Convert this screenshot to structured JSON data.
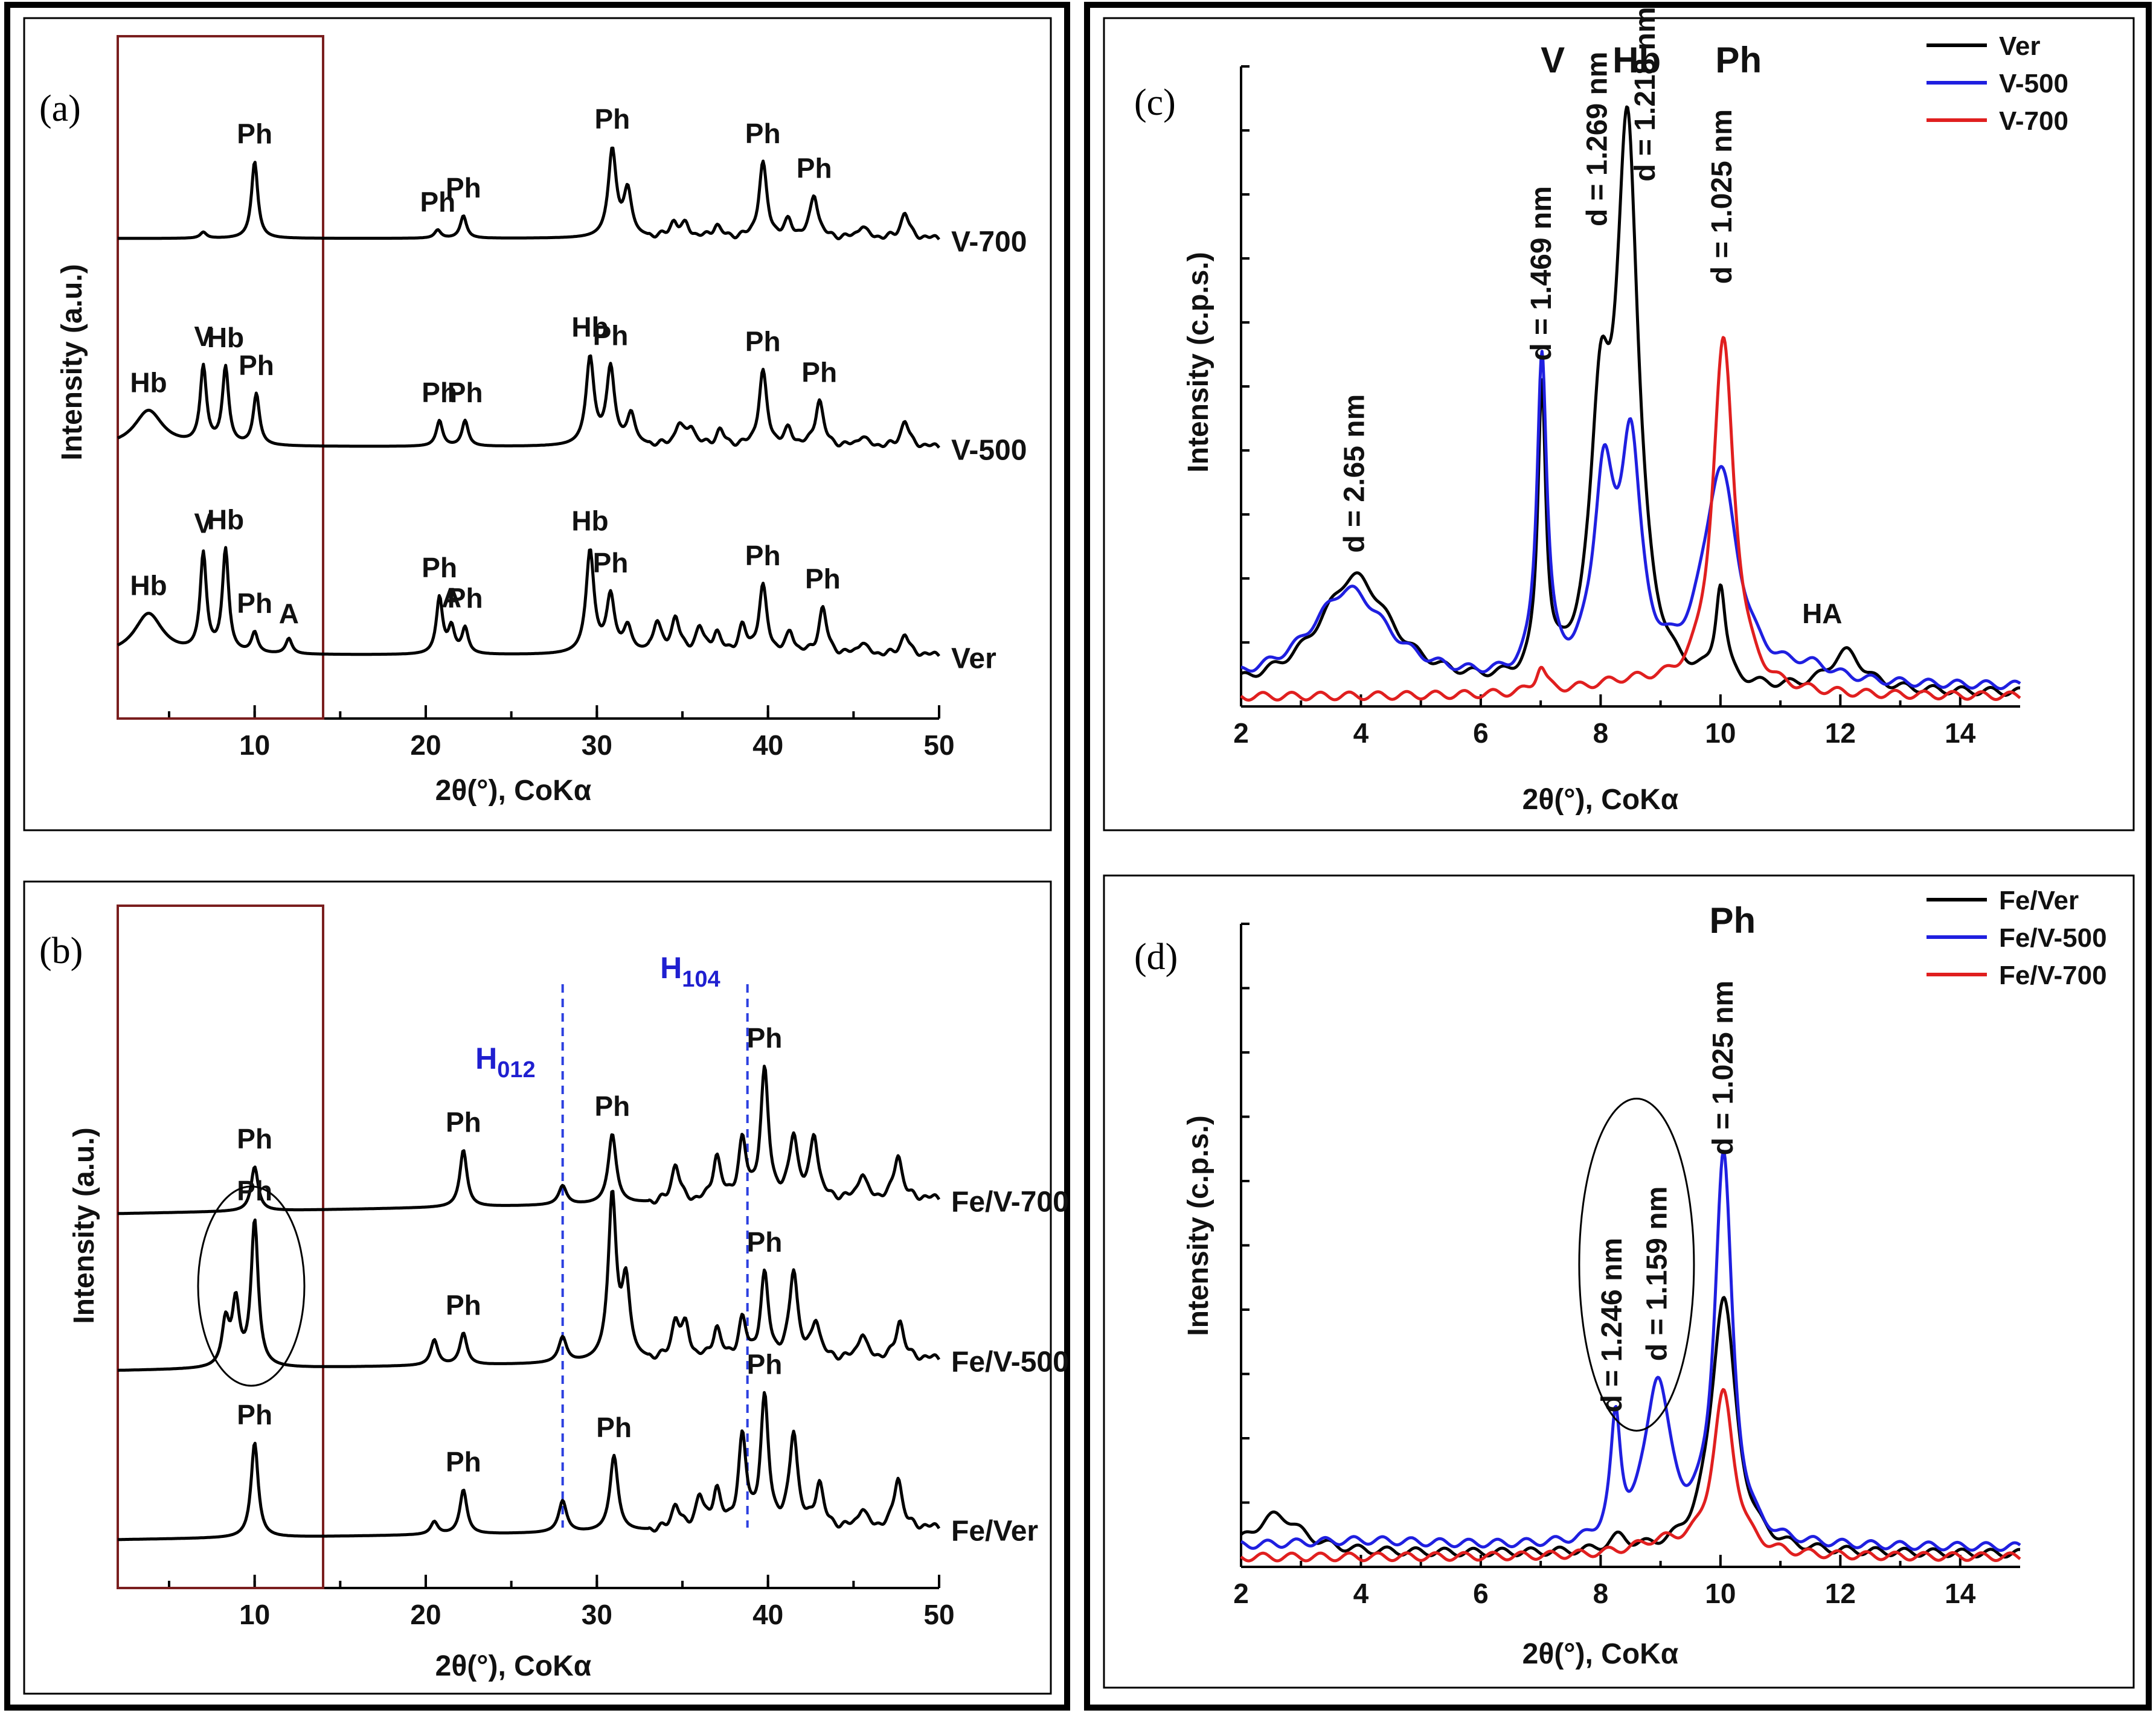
{
  "chart_data": [
    {
      "panel": "(a)",
      "type": "line",
      "xlabel": "2θ(°), CoKα",
      "ylabel": "Intensity (a.u.)",
      "xlim": [
        2,
        50
      ],
      "xticks": [
        10,
        20,
        30,
        40,
        50
      ],
      "stacked": true,
      "series": [
        {
          "name": "V-700",
          "color": "#000000",
          "peaks": [
            [
              7,
              0.06
            ],
            [
              10,
              0.75
            ],
            [
              20.7,
              0.08
            ],
            [
              22.2,
              0.22
            ],
            [
              30.9,
              0.85
            ],
            [
              31.8,
              0.45
            ],
            [
              34.5,
              0.15
            ],
            [
              35.2,
              0.12
            ],
            [
              37,
              0.12
            ],
            [
              39.7,
              0.72
            ],
            [
              41.2,
              0.15
            ],
            [
              42.7,
              0.42
            ],
            [
              45.5,
              0.12
            ],
            [
              48,
              0.25
            ]
          ],
          "peak_labels": [
            [
              "Ph",
              10
            ],
            [
              "Ph",
              20.7
            ],
            [
              "Ph",
              22.2
            ],
            [
              "Ph",
              30.9
            ],
            [
              "Ph",
              39.7
            ],
            [
              "Ph",
              42.7
            ]
          ]
        },
        {
          "name": "V-500",
          "color": "#000000",
          "peaks": [
            [
              3.8,
              0.35
            ],
            [
              7,
              0.75
            ],
            [
              8.3,
              0.75
            ],
            [
              10.1,
              0.5
            ],
            [
              20.8,
              0.25
            ],
            [
              22.3,
              0.25
            ],
            [
              29.6,
              0.85
            ],
            [
              30.8,
              0.75
            ],
            [
              32,
              0.3
            ],
            [
              34.8,
              0.2
            ],
            [
              35.5,
              0.18
            ],
            [
              37.2,
              0.15
            ],
            [
              39.7,
              0.72
            ],
            [
              41.2,
              0.15
            ],
            [
              43,
              0.45
            ],
            [
              45.5,
              0.1
            ],
            [
              48,
              0.25
            ]
          ],
          "peak_labels": [
            [
              "Hb",
              3.8
            ],
            [
              "V",
              7
            ],
            [
              "Hb",
              8.3
            ],
            [
              "Ph",
              10.1
            ],
            [
              "Ph",
              20.8
            ],
            [
              "Ph",
              22.3
            ],
            [
              "Hb",
              29.6
            ],
            [
              "Ph",
              30.8
            ],
            [
              "Ph",
              39.7
            ],
            [
              "Ph",
              43
            ]
          ]
        },
        {
          "name": "Ver",
          "color": "#000000",
          "peaks": [
            [
              3.8,
              0.4
            ],
            [
              7,
              0.95
            ],
            [
              8.3,
              1.0
            ],
            [
              10,
              0.2
            ],
            [
              12,
              0.15
            ],
            [
              20.8,
              0.55
            ],
            [
              21.5,
              0.25
            ],
            [
              22.3,
              0.25
            ],
            [
              29.6,
              1.0
            ],
            [
              30.8,
              0.55
            ],
            [
              31.8,
              0.25
            ],
            [
              33.5,
              0.3
            ],
            [
              34.6,
              0.35
            ],
            [
              36,
              0.25
            ],
            [
              37,
              0.2
            ],
            [
              38.5,
              0.25
            ],
            [
              39.7,
              0.65
            ],
            [
              41.3,
              0.2
            ],
            [
              43.2,
              0.45
            ],
            [
              45.5,
              0.12
            ],
            [
              48,
              0.2
            ]
          ],
          "peak_labels": [
            [
              "Hb",
              3.8
            ],
            [
              "V",
              7
            ],
            [
              "Hb",
              8.3
            ],
            [
              "Ph",
              10
            ],
            [
              "A",
              12
            ],
            [
              "Ph",
              20.8
            ],
            [
              "A",
              21.5
            ],
            [
              "Ph",
              22.3
            ],
            [
              "Hb",
              29.6
            ],
            [
              "Ph",
              30.8
            ],
            [
              "Ph",
              39.7
            ],
            [
              "Ph",
              43.2
            ]
          ]
        }
      ],
      "highlight_box_x": [
        2,
        14
      ]
    },
    {
      "panel": "(b)",
      "type": "line",
      "xlabel": "2θ(°), CoKα",
      "ylabel": "Intensity (a.u.)",
      "xlim": [
        2,
        50
      ],
      "xticks": [
        10,
        20,
        30,
        40,
        50
      ],
      "stacked": true,
      "reference_lines": [
        {
          "label": "H012",
          "x": 28
        },
        {
          "label": "H104",
          "x": 38.8
        }
      ],
      "series": [
        {
          "name": "Fe/V-700",
          "color": "#000000",
          "peaks": [
            [
              10,
              0.35
            ],
            [
              22.2,
              0.45
            ],
            [
              28,
              0.15
            ],
            [
              30.9,
              0.55
            ],
            [
              34.6,
              0.3
            ],
            [
              37,
              0.35
            ],
            [
              38.5,
              0.45
            ],
            [
              39.8,
              1.0
            ],
            [
              41.5,
              0.5
            ],
            [
              42.7,
              0.5
            ],
            [
              45.5,
              0.2
            ],
            [
              47.6,
              0.35
            ]
          ],
          "peak_labels": [
            [
              "Ph",
              10
            ],
            [
              "Ph",
              22.2
            ],
            [
              "Ph",
              30.9
            ],
            [
              "Ph",
              39.8
            ]
          ]
        },
        {
          "name": "Fe/V-500",
          "color": "#000000",
          "peaks": [
            [
              8.3,
              0.35
            ],
            [
              8.9,
              0.5
            ],
            [
              10,
              1.15
            ],
            [
              20.5,
              0.2
            ],
            [
              22.2,
              0.25
            ],
            [
              28,
              0.2
            ],
            [
              30.9,
              1.3
            ],
            [
              31.7,
              0.6
            ],
            [
              34.6,
              0.3
            ],
            [
              35.2,
              0.25
            ],
            [
              37,
              0.25
            ],
            [
              38.5,
              0.3
            ],
            [
              39.8,
              0.65
            ],
            [
              41.5,
              0.7
            ],
            [
              42.8,
              0.3
            ],
            [
              45.5,
              0.2
            ],
            [
              47.7,
              0.3
            ]
          ],
          "peak_labels": [
            [
              "Ph",
              10
            ],
            [
              "Ph",
              22.2
            ],
            [
              "Ph",
              39.8
            ]
          ]
        },
        {
          "name": "Fe/Ver",
          "color": "#000000",
          "peaks": [
            [
              10,
              0.75
            ],
            [
              20.5,
              0.1
            ],
            [
              22.2,
              0.35
            ],
            [
              28,
              0.25
            ],
            [
              31,
              0.6
            ],
            [
              34.6,
              0.2
            ],
            [
              36,
              0.25
            ],
            [
              37,
              0.3
            ],
            [
              38.5,
              0.7
            ],
            [
              39.8,
              1.0
            ],
            [
              41.5,
              0.75
            ],
            [
              43,
              0.35
            ],
            [
              45.5,
              0.15
            ],
            [
              47.6,
              0.4
            ]
          ],
          "peak_labels": [
            [
              "Ph",
              10
            ],
            [
              "Ph",
              22.2
            ],
            [
              "Ph",
              31
            ],
            [
              "Ph",
              39.8
            ]
          ]
        }
      ],
      "highlight_box_x": [
        2,
        14
      ]
    },
    {
      "panel": "(c)",
      "type": "line",
      "xlabel": "2θ(°), CoKα",
      "ylabel": "Intensity (c.p.s.)",
      "xlim": [
        2,
        15
      ],
      "xticks": [
        2,
        4,
        6,
        8,
        10,
        12,
        14
      ],
      "ylim": [
        0,
        1
      ],
      "legend": "top-right",
      "phase_labels": [
        [
          "V",
          7
        ],
        [
          "Hb",
          8.3
        ],
        [
          "Ph",
          10.1
        ]
      ],
      "d_labels": [
        [
          "d = 2.65 nm",
          3.9
        ],
        [
          "d = 1.469 nm",
          7
        ],
        [
          "d = 1.269 nm",
          8
        ],
        [
          "d = 1.218 nm",
          8.5
        ],
        [
          "d = 1.025 nm",
          10
        ]
      ],
      "annotation": [
        [
          "HA",
          12
        ]
      ],
      "series": [
        {
          "name": "Ver",
          "color": "#000000",
          "base": 0.02,
          "peaks": [
            [
              3.9,
              0.18,
              0.75
            ],
            [
              7.02,
              0.45,
              0.08
            ],
            [
              8.0,
              0.38,
              0.2
            ],
            [
              8.45,
              0.85,
              0.22
            ],
            [
              10.0,
              0.15,
              0.1
            ],
            [
              12.1,
              0.06,
              0.35
            ]
          ]
        },
        {
          "name": "V-500",
          "color": "#1f1fe0",
          "base": 0.03,
          "peaks": [
            [
              3.8,
              0.15,
              0.8
            ],
            [
              7.02,
              0.5,
              0.1
            ],
            [
              8.05,
              0.3,
              0.2
            ],
            [
              8.5,
              0.35,
              0.2
            ],
            [
              10.0,
              0.33,
              0.35
            ],
            [
              11.5,
              0.02,
              0.5
            ]
          ]
        },
        {
          "name": "V-700",
          "color": "#e01f1f",
          "base": 0.015,
          "peaks": [
            [
              7.0,
              0.04,
              0.1
            ],
            [
              8.5,
              0.02,
              1.0
            ],
            [
              10.05,
              0.55,
              0.22
            ]
          ]
        }
      ]
    },
    {
      "panel": "(d)",
      "type": "line",
      "xlabel": "2θ(°), CoKα",
      "ylabel": "Intensity (c.p.s.)",
      "xlim": [
        2,
        15
      ],
      "xticks": [
        2,
        4,
        6,
        8,
        10,
        12,
        14
      ],
      "ylim": [
        0,
        1
      ],
      "legend": "top-right",
      "phase_labels": [
        [
          "Ph",
          10
        ]
      ],
      "d_labels": [
        [
          "d = 1.246 nm",
          8.3
        ],
        [
          "d = 1.159 nm",
          8.9
        ],
        [
          "d = 1.025 nm",
          10
        ]
      ],
      "series": [
        {
          "name": "Fe/Ver",
          "color": "#000000",
          "base": 0.02,
          "peaks": [
            [
              2.6,
              0.06,
              0.5
            ],
            [
              8.3,
              0.02,
              0.2
            ],
            [
              10.05,
              0.4,
              0.25
            ]
          ]
        },
        {
          "name": "Fe/V-500",
          "color": "#1f1fe0",
          "base": 0.03,
          "peaks": [
            [
              4.0,
              0.01,
              1.5
            ],
            [
              8.25,
              0.18,
              0.1
            ],
            [
              8.95,
              0.25,
              0.25
            ],
            [
              10.05,
              0.6,
              0.18
            ]
          ]
        },
        {
          "name": "Fe/V-700",
          "color": "#e01f1f",
          "base": 0.015,
          "peaks": [
            [
              10.05,
              0.25,
              0.22
            ],
            [
              9.0,
              0.02,
              0.6
            ]
          ]
        }
      ]
    }
  ]
}
